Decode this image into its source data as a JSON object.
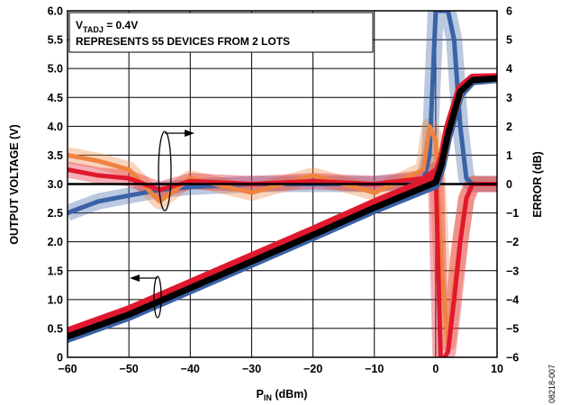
{
  "chart_data": {
    "type": "line",
    "x": {
      "label_main": "P",
      "label_sub": "IN",
      "label_rest": " (dBm)",
      "range": [
        -60,
        10
      ],
      "ticks": [
        -60,
        -50,
        -40,
        -30,
        -20,
        -10,
        0,
        10
      ],
      "tick_labels": [
        "−60",
        "−50",
        "−40",
        "−30",
        "−20",
        "−10",
        "0",
        "10"
      ]
    },
    "y_left": {
      "label": "OUTPUT VOLTAGE (V)",
      "range": [
        0,
        6
      ],
      "ticks": [
        0,
        0.5,
        1,
        1.5,
        2,
        2.5,
        3,
        3.5,
        4,
        4.5,
        5,
        5.5,
        6
      ],
      "tick_labels": [
        "0",
        "0.5",
        "1.0",
        "1.5",
        "2.0",
        "2.5",
        "3.0",
        "3.5",
        "4.0",
        "4.5",
        "5.0",
        "5.5",
        "6.0"
      ]
    },
    "y_right": {
      "label": "ERROR (dB)",
      "range": [
        -6,
        6
      ],
      "ticks": [
        -6,
        -5,
        -4,
        -3,
        -2,
        -1,
        0,
        1,
        2,
        3,
        4,
        5,
        6
      ],
      "tick_labels": [
        "−6",
        "−5",
        "−4",
        "−3",
        "−2",
        "−1",
        "0",
        "1",
        "2",
        "3",
        "4",
        "5",
        "6"
      ]
    },
    "grid": true,
    "annotation": {
      "line1_main": "V",
      "line1_sub": "TADJ",
      "line1_rest": " = 0.4V",
      "line2": "REPRESENTS 55 DEVICES FROM 2 LOTS"
    },
    "figure_code": "08218-007",
    "series": [
      {
        "color": "#3a62a6",
        "kind": "output_voltage",
        "points": [
          [
            -60,
            0.32
          ],
          [
            -50,
            0.7
          ],
          [
            -40,
            1.16
          ],
          [
            -30,
            1.62
          ],
          [
            -20,
            2.08
          ],
          [
            -10,
            2.55
          ],
          [
            0,
            2.98
          ],
          [
            1,
            3.3
          ],
          [
            2,
            3.8
          ],
          [
            4,
            4.55
          ],
          [
            6,
            4.78
          ],
          [
            10,
            4.82
          ]
        ]
      },
      {
        "color": "#ef8340",
        "kind": "output_voltage",
        "points": [
          [
            -60,
            0.4
          ],
          [
            -50,
            0.78
          ],
          [
            -40,
            1.24
          ],
          [
            -30,
            1.7
          ],
          [
            -20,
            2.16
          ],
          [
            -10,
            2.63
          ],
          [
            0,
            3.08
          ],
          [
            1,
            3.4
          ],
          [
            2,
            3.92
          ],
          [
            4,
            4.62
          ],
          [
            6,
            4.82
          ],
          [
            10,
            4.84
          ]
        ]
      },
      {
        "color": "#e0182e",
        "kind": "output_voltage",
        "points": [
          [
            -60,
            0.45
          ],
          [
            -50,
            0.83
          ],
          [
            -40,
            1.29
          ],
          [
            -30,
            1.75
          ],
          [
            -20,
            2.21
          ],
          [
            -10,
            2.68
          ],
          [
            0,
            3.12
          ],
          [
            1,
            3.45
          ],
          [
            2,
            3.98
          ],
          [
            4,
            4.66
          ],
          [
            6,
            4.84
          ],
          [
            10,
            4.85
          ]
        ]
      },
      {
        "color": "#000000",
        "kind": "output_voltage",
        "points": [
          [
            -60,
            0.36
          ],
          [
            -50,
            0.74
          ],
          [
            -40,
            1.2
          ],
          [
            -30,
            1.66
          ],
          [
            -20,
            2.12
          ],
          [
            -10,
            2.59
          ],
          [
            0,
            3.03
          ],
          [
            1,
            3.36
          ],
          [
            2,
            3.86
          ],
          [
            4,
            4.6
          ],
          [
            6,
            4.8
          ],
          [
            10,
            4.83
          ]
        ]
      },
      {
        "color": "#3a62a6",
        "kind": "error_db",
        "points": [
          [
            -60,
            -1.0
          ],
          [
            -55,
            -0.6
          ],
          [
            -50,
            -0.4
          ],
          [
            -45,
            -0.2
          ],
          [
            -40,
            -0.1
          ],
          [
            -30,
            0.0
          ],
          [
            -20,
            0.0
          ],
          [
            -10,
            0.0
          ],
          [
            -2,
            0.1
          ],
          [
            -1,
            1.0
          ],
          [
            0,
            6.0
          ],
          [
            2,
            6.0
          ],
          [
            3,
            5.0
          ],
          [
            4,
            2.0
          ],
          [
            5,
            0.2
          ],
          [
            6,
            0.0
          ],
          [
            10,
            0.0
          ]
        ]
      },
      {
        "color": "#ef8340",
        "kind": "error_db",
        "points": [
          [
            -60,
            1.0
          ],
          [
            -55,
            0.8
          ],
          [
            -50,
            0.5
          ],
          [
            -45,
            -0.6
          ],
          [
            -40,
            0.2
          ],
          [
            -30,
            -0.3
          ],
          [
            -20,
            0.3
          ],
          [
            -10,
            -0.3
          ],
          [
            -2,
            0.5
          ],
          [
            -1,
            2.0
          ],
          [
            0,
            1.5
          ],
          [
            1,
            -3.0
          ],
          [
            2,
            -5.5
          ],
          [
            3,
            -3.5
          ],
          [
            5,
            -0.5
          ],
          [
            6,
            0.0
          ],
          [
            10,
            0.0
          ]
        ]
      },
      {
        "color": "#e0182e",
        "kind": "error_db",
        "points": [
          [
            -60,
            0.5
          ],
          [
            -55,
            0.3
          ],
          [
            -50,
            0.2
          ],
          [
            -45,
            -0.2
          ],
          [
            -40,
            0.1
          ],
          [
            -30,
            0.0
          ],
          [
            -20,
            0.1
          ],
          [
            -10,
            0.0
          ],
          [
            -2,
            0.2
          ],
          [
            0,
            0.5
          ],
          [
            0.8,
            -6.0
          ],
          [
            1.5,
            -6.0
          ],
          [
            2,
            -5.8
          ],
          [
            3,
            -4.0
          ],
          [
            4,
            -2.0
          ],
          [
            5,
            -0.5
          ],
          [
            6,
            0.0
          ],
          [
            10,
            0.0
          ]
        ]
      },
      {
        "color": "#000000",
        "kind": "error_db",
        "points": [
          [
            -60,
            0.0
          ],
          [
            10,
            0.0
          ]
        ]
      }
    ]
  }
}
